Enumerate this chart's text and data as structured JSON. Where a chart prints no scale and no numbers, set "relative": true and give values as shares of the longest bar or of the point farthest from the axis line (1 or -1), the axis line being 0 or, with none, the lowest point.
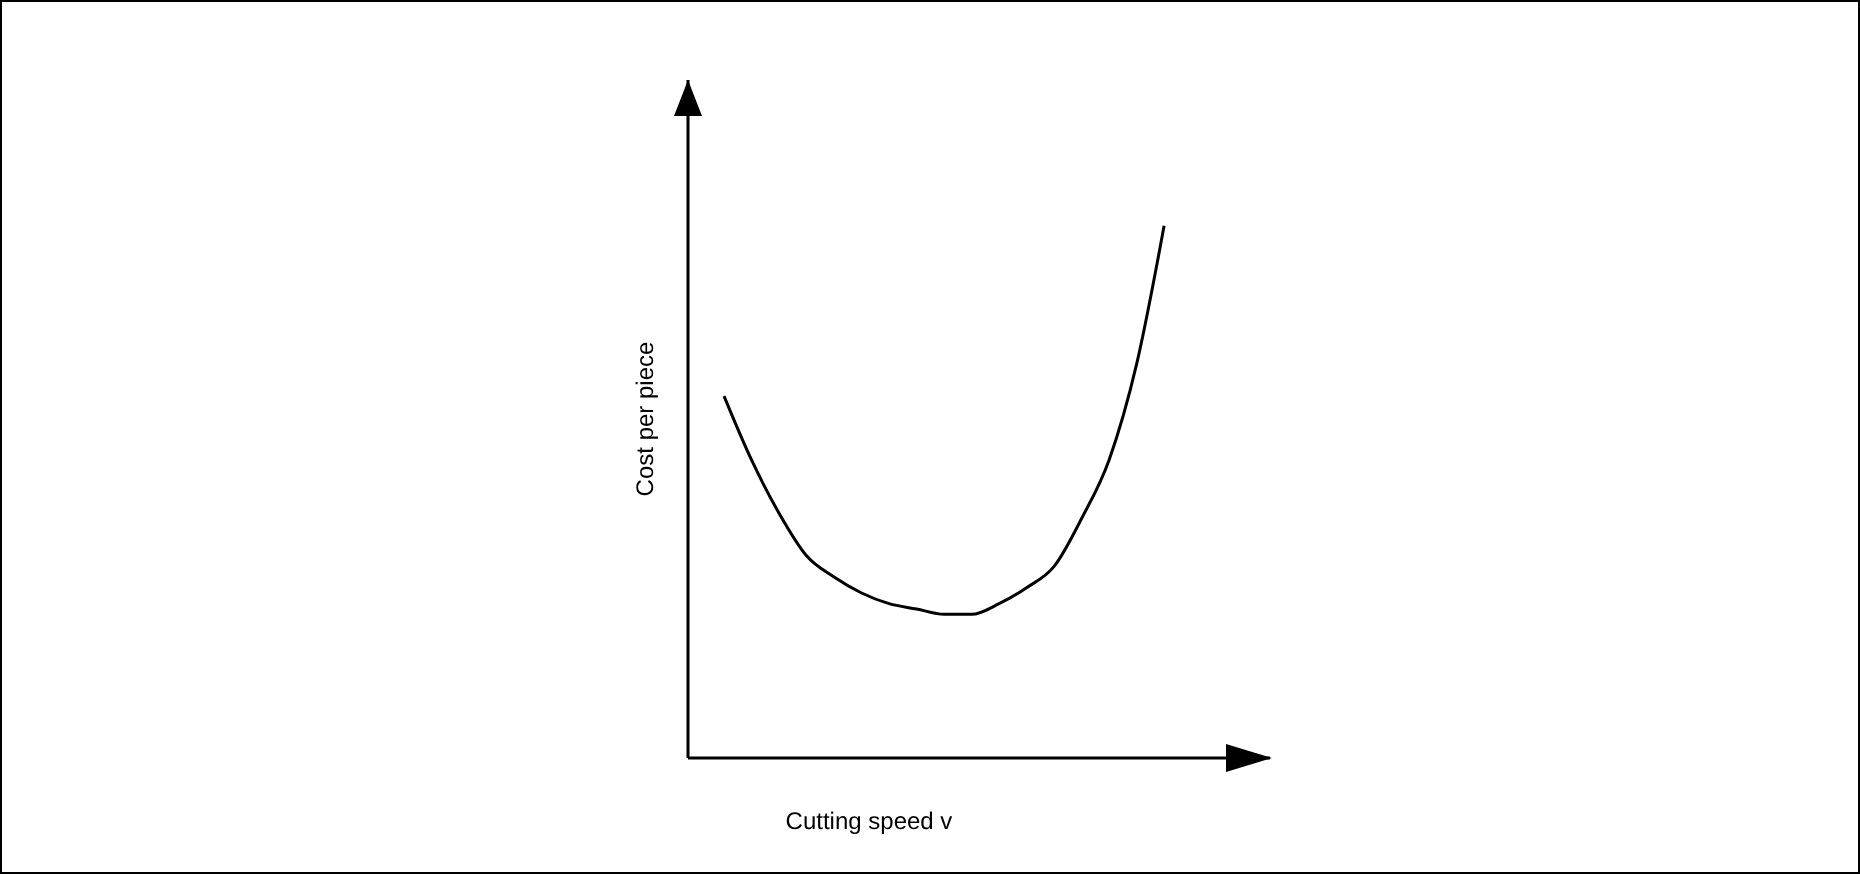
{
  "chart_data": {
    "type": "line",
    "relative": true,
    "xlabel": "Cutting speed v",
    "ylabel": "Cost per piece",
    "tick_labels": false,
    "grid": false,
    "legend": false,
    "marker": "none",
    "line_style": "solid",
    "categories": [
      null,
      null,
      null,
      null,
      null,
      null,
      null,
      null,
      null,
      null,
      null,
      null,
      null,
      null,
      null,
      null,
      null
    ],
    "series": [
      {
        "color": "#000000",
        "values": [
          0.68,
          0.56,
          0.46,
          0.38,
          0.34,
          0.31,
          0.29,
          0.28,
          0.27,
          0.27,
          0.29,
          0.32,
          0.36,
          0.45,
          0.56,
          0.74,
          1
        ]
      }
    ]
  }
}
